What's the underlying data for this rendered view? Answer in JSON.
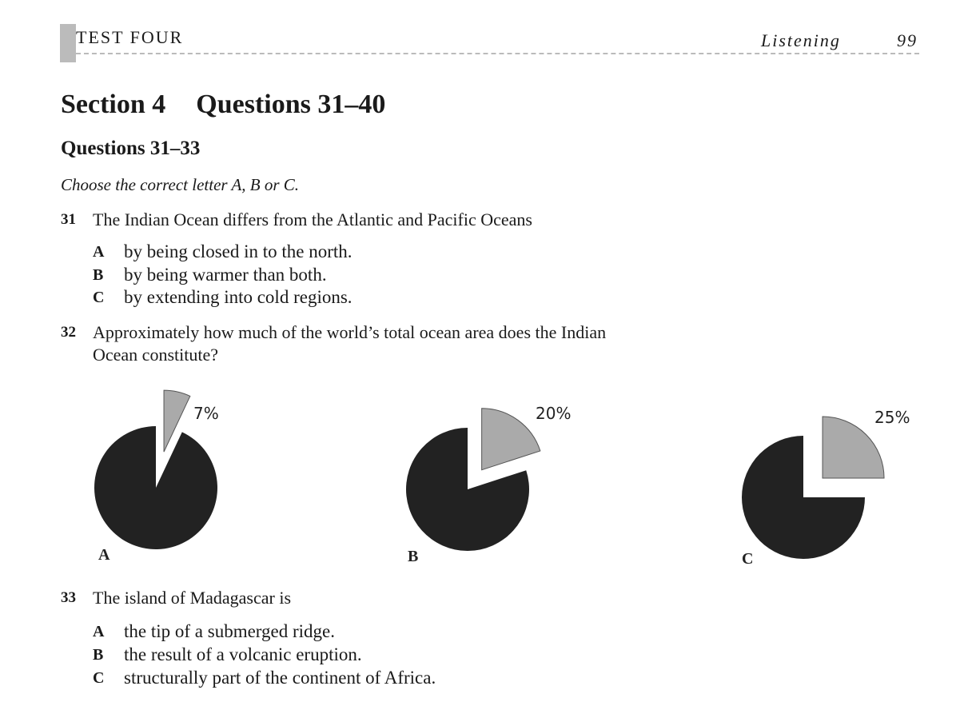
{
  "header": {
    "title": "TEST FOUR",
    "section": "Listening",
    "page": "99"
  },
  "heading": {
    "section": "Section 4",
    "questions": "Questions 31–40"
  },
  "group": {
    "title": "Questions 31–33",
    "instruction": "Choose the correct letter A, B or C."
  },
  "questions": [
    {
      "number": "31",
      "text": "The Indian Ocean differs from the Atlantic and Pacific Oceans",
      "options": [
        {
          "letter": "A",
          "text": "by being closed in to the north."
        },
        {
          "letter": "B",
          "text": "by being warmer than both."
        },
        {
          "letter": "C",
          "text": "by extending into cold regions."
        }
      ]
    },
    {
      "number": "32",
      "text": "Approximately how much of the world’s total ocean area does the Indian Ocean constitute?",
      "pies": [
        {
          "letter": "A",
          "value": 7,
          "label": "7%"
        },
        {
          "letter": "B",
          "value": 20,
          "label": "20%"
        },
        {
          "letter": "C",
          "value": 25,
          "label": "25%"
        }
      ]
    },
    {
      "number": "33",
      "text": "The island of Madagascar is",
      "options": [
        {
          "letter": "A",
          "text": "the tip of a submerged ridge."
        },
        {
          "letter": "B",
          "text": "the result of a volcanic eruption."
        },
        {
          "letter": "C",
          "text": "structurally part of the continent of Africa."
        }
      ]
    }
  ]
}
